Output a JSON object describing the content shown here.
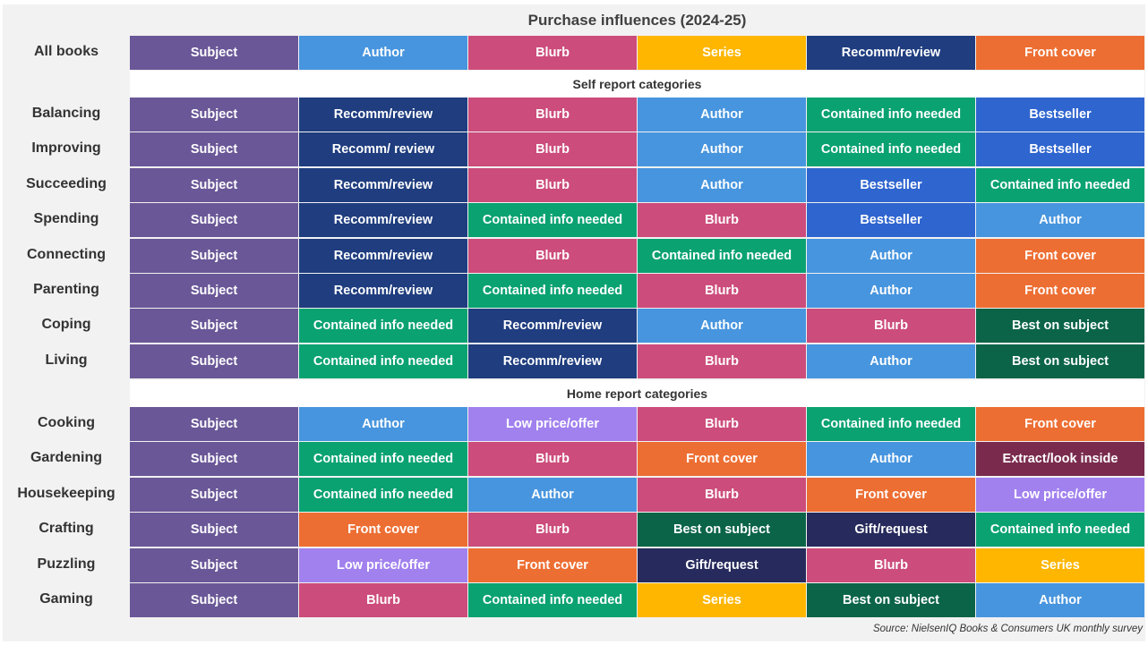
{
  "chart_data": {
    "type": "table",
    "title": "Purchase influences (2024-25)",
    "source": "Source: NielsenIQ Books & Consumers UK monthly survey",
    "colors": {
      "Subject": "#6a5797",
      "Author": "#4795de",
      "Blurb": "#cc4c7b",
      "Series": "#feb600",
      "Recomm/review": "#1f3d7f",
      "Recomm/ review": "#1f3d7f",
      "Front cover": "#ed6e32",
      "Contained info needed": "#0aa271",
      "Bestseller": "#2f65cf",
      "Best on subject": "#0b6448",
      "Low price/offer": "#a181ee",
      "Extract/look inside": "#7a2b4d",
      "Gift/request": "#262a5c"
    },
    "top": {
      "label": "All books",
      "items": [
        "Subject",
        "Author",
        "Blurb",
        "Series",
        "Recomm/review",
        "Front cover"
      ]
    },
    "sections": [
      {
        "heading": "Self report categories",
        "rows": [
          {
            "label": "Balancing",
            "items": [
              "Subject",
              "Recomm/review",
              "Blurb",
              "Author",
              "Contained info needed",
              "Bestseller"
            ]
          },
          {
            "label": "Improving",
            "items": [
              "Subject",
              "Recomm/ review",
              "Blurb",
              "Author",
              "Contained info needed",
              "Bestseller"
            ]
          },
          {
            "label": "Succeeding",
            "items": [
              "Subject",
              "Recomm/review",
              "Blurb",
              "Author",
              "Bestseller",
              "Contained info needed"
            ]
          },
          {
            "label": "Spending",
            "items": [
              "Subject",
              "Recomm/review",
              "Contained info needed",
              "Blurb",
              "Bestseller",
              "Author"
            ]
          },
          {
            "label": "Connecting",
            "items": [
              "Subject",
              "Recomm/review",
              "Blurb",
              "Contained info needed",
              "Author",
              "Front cover"
            ]
          },
          {
            "label": "Parenting",
            "items": [
              "Subject",
              "Recomm/review",
              "Contained info needed",
              "Blurb",
              "Author",
              "Front cover"
            ]
          },
          {
            "label": "Coping",
            "items": [
              "Subject",
              "Contained info needed",
              "Recomm/review",
              "Author",
              "Blurb",
              "Best on subject"
            ]
          },
          {
            "label": "Living",
            "items": [
              "Subject",
              "Contained info needed",
              "Recomm/review",
              "Blurb",
              "Author",
              "Best on subject"
            ]
          }
        ]
      },
      {
        "heading": "Home report categories",
        "rows": [
          {
            "label": "Cooking",
            "items": [
              "Subject",
              "Author",
              "Low price/offer",
              "Blurb",
              "Contained info needed",
              "Front cover"
            ]
          },
          {
            "label": "Gardening",
            "items": [
              "Subject",
              "Contained info needed",
              "Blurb",
              "Front cover",
              "Author",
              "Extract/look inside"
            ]
          },
          {
            "label": "Housekeeping",
            "items": [
              "Subject",
              "Contained info needed",
              "Author",
              "Blurb",
              "Front cover",
              "Low price/offer"
            ]
          },
          {
            "label": "Crafting",
            "items": [
              "Subject",
              "Front cover",
              "Blurb",
              "Best on subject",
              "Gift/request",
              "Contained info needed"
            ]
          },
          {
            "label": "Puzzling",
            "items": [
              "Subject",
              "Low price/offer",
              "Front cover",
              "Gift/request",
              "Blurb",
              "Series"
            ]
          },
          {
            "label": "Gaming",
            "items": [
              "Subject",
              "Blurb",
              "Contained info needed",
              "Series",
              "Best on subject",
              "Author"
            ]
          }
        ]
      }
    ]
  }
}
